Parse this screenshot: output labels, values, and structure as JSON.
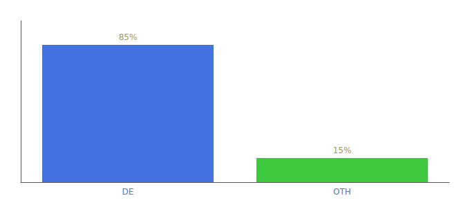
{
  "chart_data": {
    "type": "bar",
    "categories": [
      "DE",
      "OTH"
    ],
    "values": [
      85,
      15
    ],
    "value_labels": [
      "85%",
      "15%"
    ],
    "colors": [
      "#4472e0",
      "#3dc83d"
    ],
    "ylim": [
      0,
      100
    ],
    "data_labels": true,
    "tick_labels": "x",
    "grid": false
  }
}
